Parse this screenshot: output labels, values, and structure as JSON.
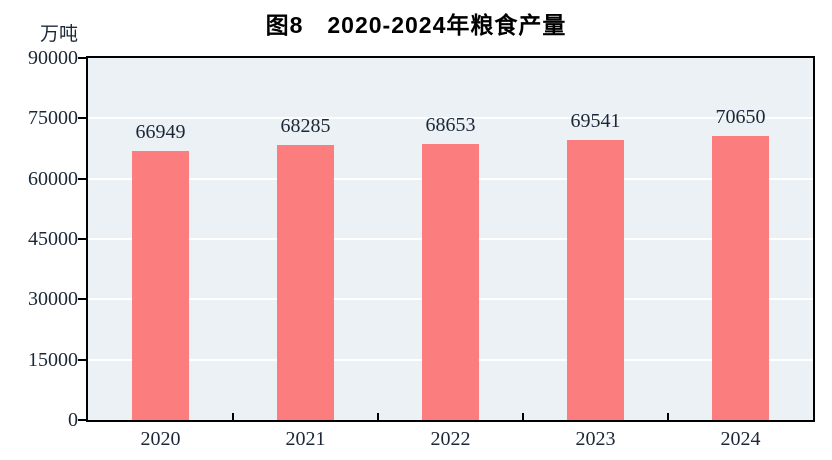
{
  "title": "图8　2020-2024年粮食产量",
  "unit_label": "万吨",
  "colors": {
    "bar": "#fc7d7d",
    "plot_background": "#ebf1f5",
    "gridline": "#ffffff",
    "axis": "#000000",
    "text": "#1c2838",
    "title_text": "#000000",
    "page_background": "#ffffff"
  },
  "chart_data": {
    "type": "bar",
    "title": "图8　2020-2024年粮食产量",
    "categories": [
      "2020",
      "2021",
      "2022",
      "2023",
      "2024"
    ],
    "values": [
      66949,
      68285,
      68653,
      69541,
      70650
    ],
    "data_labels": [
      "66949",
      "68285",
      "68653",
      "69541",
      "70650"
    ],
    "xlabel": "",
    "ylabel": "万吨",
    "ylim": [
      0,
      90000
    ],
    "yticks": [
      0,
      15000,
      30000,
      45000,
      60000,
      75000,
      90000
    ],
    "ytick_labels": [
      "0",
      "15000",
      "30000",
      "45000",
      "60000",
      "75000",
      "90000"
    ],
    "grid": true,
    "legend_position": "none",
    "series_name": "粮食产量"
  }
}
